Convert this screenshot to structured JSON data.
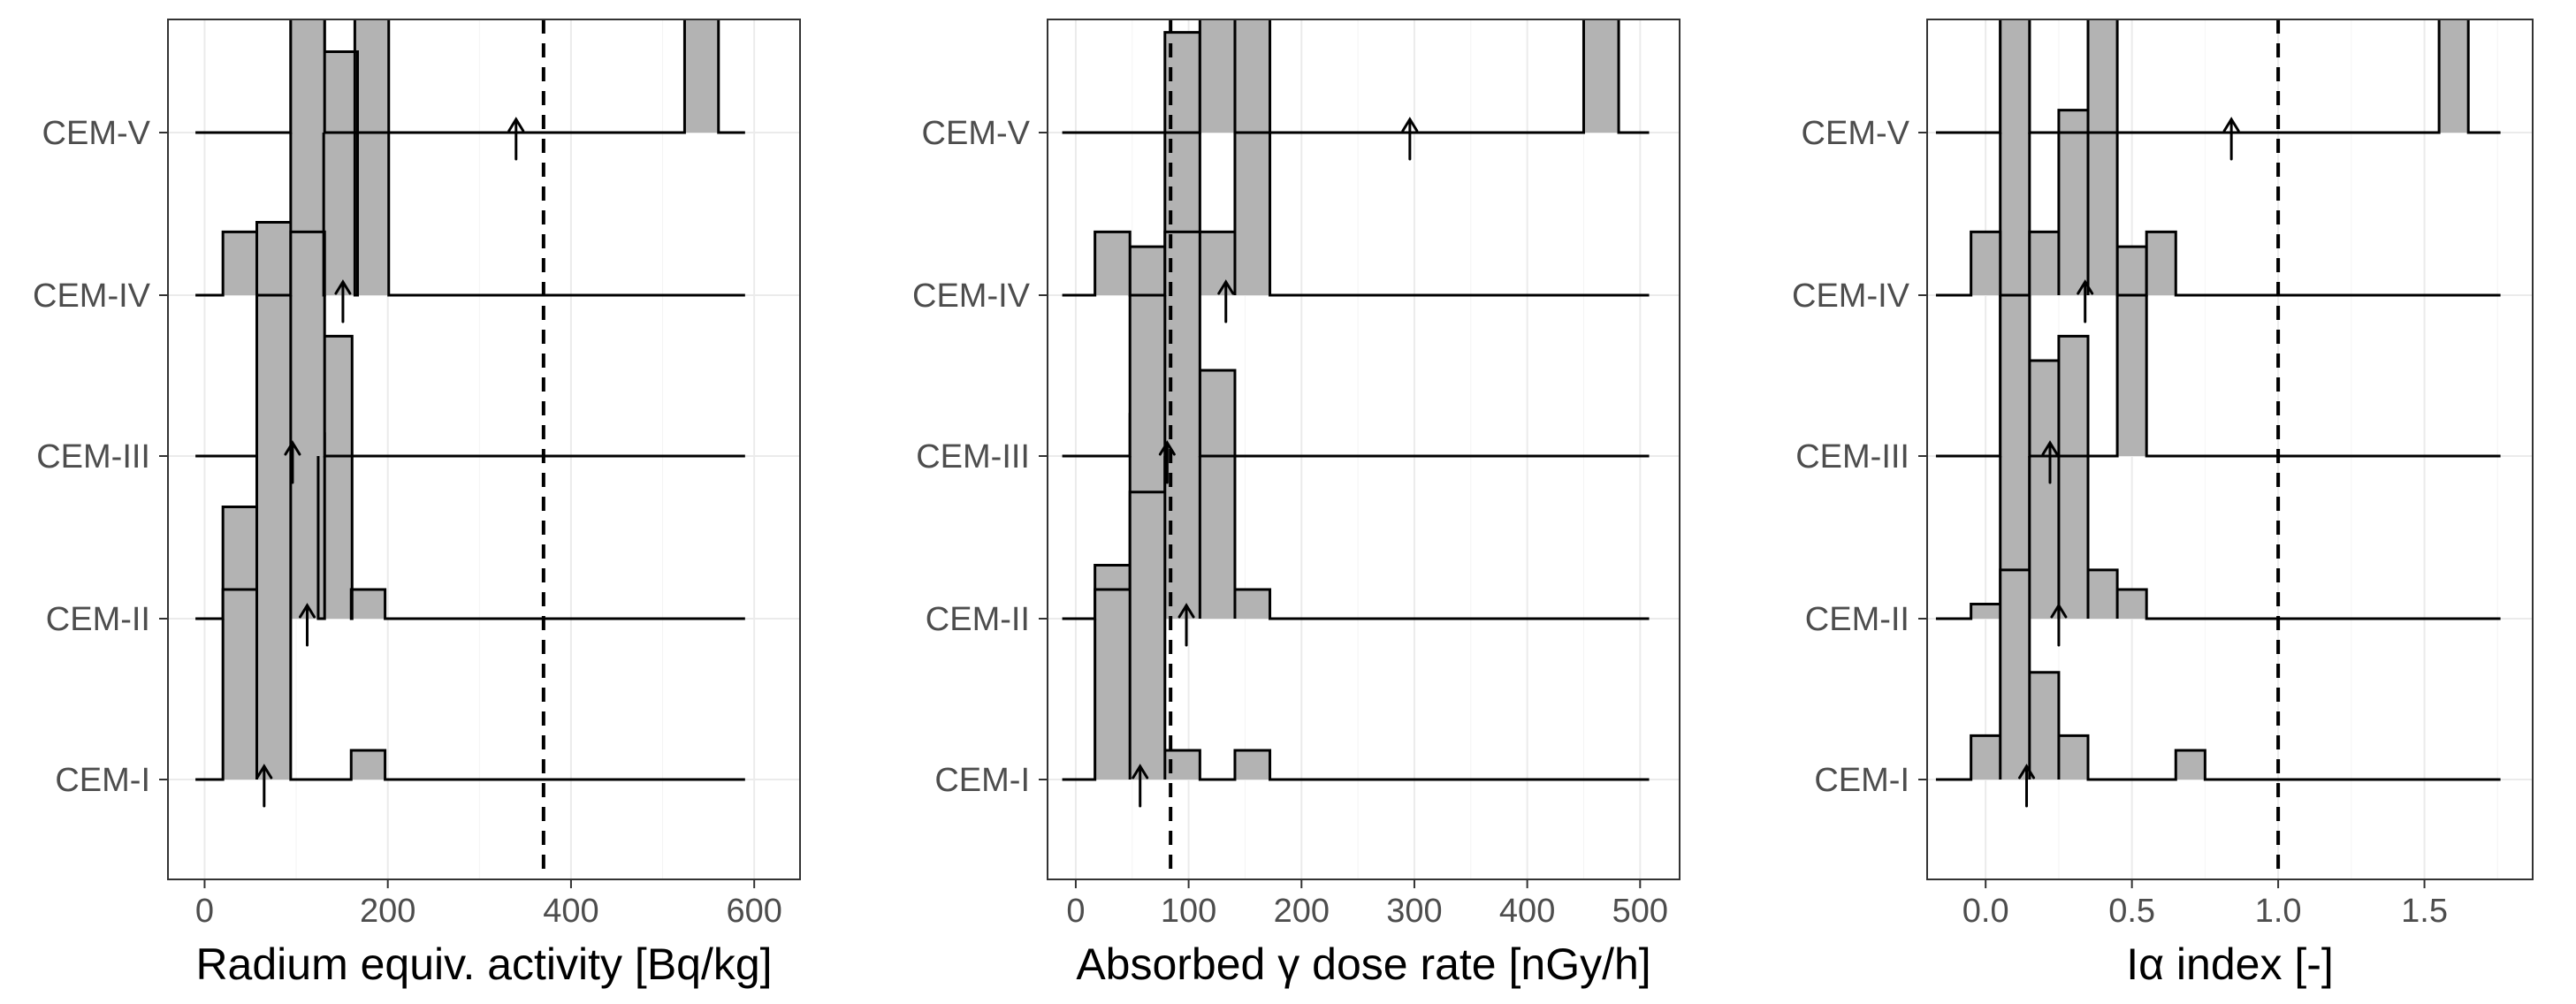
{
  "chart_data": [
    {
      "type": "histogram-ridgeline",
      "xlabel": "Radium equiv. activity [Bq/kg]",
      "xlim": [
        -40,
        650
      ],
      "xticks": [
        0,
        200,
        400,
        600
      ],
      "xtick_labels": [
        "0",
        "200",
        "400",
        "600"
      ],
      "reference_line": 370,
      "row_scale": 0.095,
      "categories": [
        "CEM-I",
        "CEM-II",
        "CEM-III",
        "CEM-IV",
        "CEM-V"
      ],
      "series": [
        {
          "name": "CEM-I",
          "line_range": [
            -10,
            590
          ],
          "bin_width": 37,
          "bins": [
            {
              "x": 20,
              "h": 5.6
            },
            {
              "x": 57,
              "h": 8.8
            },
            {
              "x": 160,
              "h": 0.6
            }
          ],
          "mean": 65
        },
        {
          "name": "CEM-II",
          "line_range": [
            -10,
            590
          ],
          "bin_width": 37,
          "bins": [
            {
              "x": 20,
              "h": 0.6
            },
            {
              "x": 57,
              "h": 3.8
            },
            {
              "x": 94,
              "h": 3.8
            },
            {
              "x": 124,
              "h": 5.8
            },
            {
              "x": 160,
              "h": 0.6
            }
          ],
          "mean": 112
        },
        {
          "name": "CEM-III",
          "line_range": [
            -10,
            590
          ],
          "bin_width": 37,
          "bins": [
            {
              "x": 57,
              "h": 4.8
            },
            {
              "x": 94,
              "h": 10.3
            }
          ],
          "mean": 96
        },
        {
          "name": "CEM-IV",
          "line_range": [
            -10,
            590
          ],
          "bin_width": 37,
          "bins": [
            {
              "x": 20,
              "h": 1.3
            },
            {
              "x": 94,
              "h": 1.3
            },
            {
              "x": 130,
              "h": 5.0
            },
            {
              "x": 164,
              "h": 7.4
            }
          ],
          "mean": 151
        },
        {
          "name": "CEM-V",
          "line_range": [
            -10,
            590
          ],
          "bin_width": 37,
          "bins": [
            {
              "x": 94,
              "h": 12
            },
            {
              "x": 524,
              "h": 12
            }
          ],
          "mean": 340
        }
      ]
    },
    {
      "type": "histogram-ridgeline",
      "xlabel": "Absorbed γ dose rate [nGy/h]",
      "xlim": [
        -25,
        535
      ],
      "xticks": [
        0,
        100,
        200,
        300,
        400,
        500
      ],
      "xtick_labels": [
        "0",
        "100",
        "200",
        "300",
        "400",
        "500"
      ],
      "reference_line": 84,
      "row_scale": 0.095,
      "categories": [
        "CEM-I",
        "CEM-II",
        "CEM-III",
        "CEM-IV",
        "CEM-V"
      ],
      "series": [
        {
          "name": "CEM-I",
          "line_range": [
            -12,
            508
          ],
          "bin_width": 31,
          "bins": [
            {
              "x": 17,
              "h": 4.4
            },
            {
              "x": 48,
              "h": 7.5
            },
            {
              "x": 79,
              "h": 0.6
            },
            {
              "x": 141,
              "h": 0.6
            }
          ],
          "mean": 57
        },
        {
          "name": "CEM-II",
          "line_range": [
            -12,
            508
          ],
          "bin_width": 31,
          "bins": [
            {
              "x": 17,
              "h": 0.6
            },
            {
              "x": 48,
              "h": 2.6
            },
            {
              "x": 79,
              "h": 3.8
            },
            {
              "x": 110,
              "h": 5.1
            },
            {
              "x": 141,
              "h": 0.6
            }
          ],
          "mean": 98
        },
        {
          "name": "CEM-III",
          "line_range": [
            -12,
            508
          ],
          "bin_width": 31,
          "bins": [
            {
              "x": 48,
              "h": 4.3
            },
            {
              "x": 79,
              "h": 8.7
            }
          ],
          "mean": 81
        },
        {
          "name": "CEM-IV",
          "line_range": [
            -12,
            508
          ],
          "bin_width": 31,
          "bins": [
            {
              "x": 17,
              "h": 1.3
            },
            {
              "x": 79,
              "h": 1.3
            },
            {
              "x": 110,
              "h": 1.3
            },
            {
              "x": 141,
              "h": 10.2
            }
          ],
          "mean": 133
        },
        {
          "name": "CEM-V",
          "line_range": [
            -12,
            508
          ],
          "bin_width": 31,
          "bins": [
            {
              "x": 110,
              "h": 12
            },
            {
              "x": 450,
              "h": 12
            }
          ],
          "mean": 296
        }
      ]
    },
    {
      "type": "histogram-ridgeline",
      "xlabel": "Iα index [-]",
      "xlim": [
        -0.2,
        1.87
      ],
      "xticks": [
        0.0,
        0.5,
        1.0,
        1.5
      ],
      "xtick_labels": [
        "0.0",
        "0.5",
        "1.0",
        "1.5"
      ],
      "reference_line": 1.0,
      "row_scale": 0.095,
      "categories": [
        "CEM-I",
        "CEM-II",
        "CEM-III",
        "CEM-IV",
        "CEM-V"
      ],
      "series": [
        {
          "name": "CEM-I",
          "line_range": [
            -0.17,
            1.76
          ],
          "bin_width": 0.1,
          "bins": [
            {
              "x": -0.05,
              "h": 0.9
            },
            {
              "x": 0.05,
              "h": 10.3
            },
            {
              "x": 0.15,
              "h": 2.2
            },
            {
              "x": 0.25,
              "h": 0.9
            },
            {
              "x": 0.65,
              "h": 0.6
            }
          ],
          "mean": 0.14
        },
        {
          "name": "CEM-II",
          "line_range": [
            -0.17,
            1.76
          ],
          "bin_width": 0.1,
          "bins": [
            {
              "x": -0.05,
              "h": 0.3
            },
            {
              "x": 0.05,
              "h": 1.0
            },
            {
              "x": 0.15,
              "h": 5.3
            },
            {
              "x": 0.25,
              "h": 5.8
            },
            {
              "x": 0.35,
              "h": 1.0
            },
            {
              "x": 0.45,
              "h": 0.6
            }
          ],
          "mean": 0.25
        },
        {
          "name": "CEM-III",
          "line_range": [
            -0.17,
            1.76
          ],
          "bin_width": 0.1,
          "bins": [
            {
              "x": 0.05,
              "h": 9.4
            },
            {
              "x": 0.45,
              "h": 4.3
            }
          ],
          "mean": 0.22
        },
        {
          "name": "CEM-IV",
          "line_range": [
            -0.17,
            1.76
          ],
          "bin_width": 0.1,
          "bins": [
            {
              "x": -0.05,
              "h": 1.3
            },
            {
              "x": 0.15,
              "h": 1.3
            },
            {
              "x": 0.25,
              "h": 3.8
            },
            {
              "x": 0.35,
              "h": 7.0
            },
            {
              "x": 0.55,
              "h": 1.3
            }
          ],
          "mean": 0.34
        },
        {
          "name": "CEM-V",
          "line_range": [
            -0.17,
            1.76
          ],
          "bin_width": 0.1,
          "bins": [
            {
              "x": 0.05,
              "h": 12
            },
            {
              "x": 1.55,
              "h": 12
            }
          ],
          "mean": 0.84
        }
      ]
    }
  ]
}
